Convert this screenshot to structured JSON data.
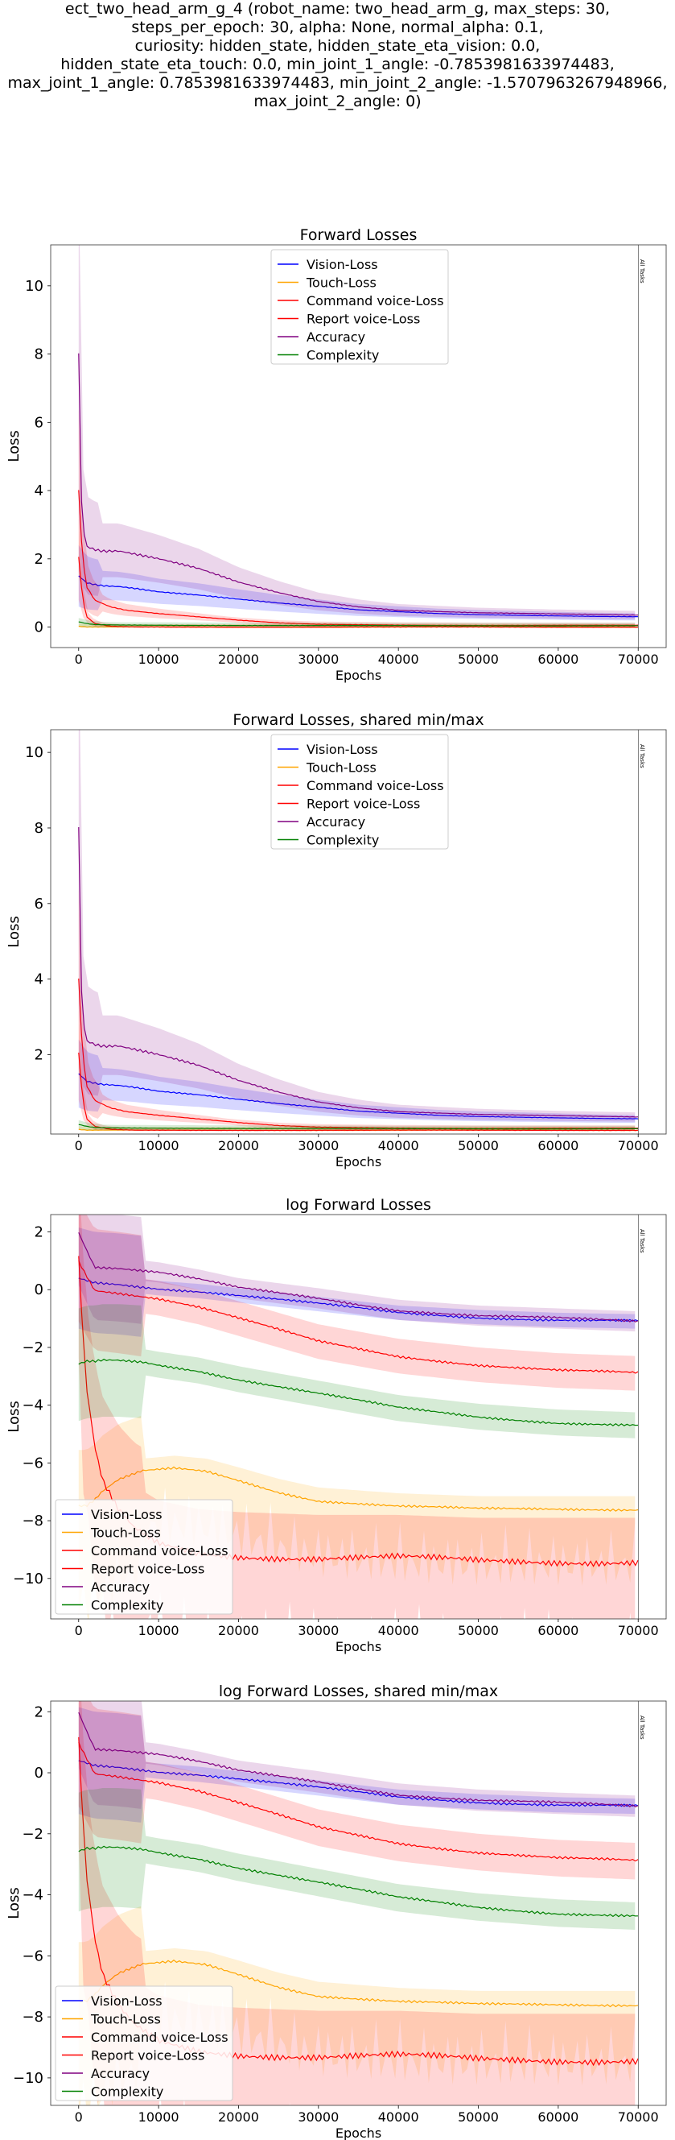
{
  "figure": {
    "suptitle_lines": [
      "ect_two_head_arm_g_4 (robot_name: two_head_arm_g, max_steps: 30,",
      "steps_per_epoch: 30, alpha: None, normal_alpha: 0.1,",
      "curiosity: hidden_state, hidden_state_eta_vision: 0.0,",
      "hidden_state_eta_touch: 0.0, min_joint_1_angle: -0.7853981633974483,",
      "max_joint_1_angle: 0.7853981633974483, min_joint_2_angle: -1.5707963267948966,",
      "max_joint_2_angle: 0)"
    ],
    "vline_label": "All Tasks"
  },
  "colors": {
    "Vision-Loss": "#0000ff",
    "Touch-Loss": "#ffa500",
    "Command voice-Loss": "#ff0000",
    "Report voice-Loss": "#ff0000",
    "Accuracy": "#800080",
    "Complexity": "#008000"
  },
  "chart_data": [
    {
      "type": "line",
      "title": "Forward Losses",
      "xlabel": "Epochs",
      "ylabel": "Loss",
      "xlim": [
        -3500,
        73500
      ],
      "ylim": [
        -0.6,
        11.2
      ],
      "xticks": [
        0,
        10000,
        20000,
        30000,
        40000,
        50000,
        60000,
        70000
      ],
      "yticks": [
        0,
        2,
        4,
        6,
        8,
        10
      ],
      "vline_x": 70000,
      "legend": "upper center",
      "series": [
        {
          "name": "Vision-Loss",
          "x": [
            0,
            500,
            1000,
            2000,
            3000,
            5000,
            7000,
            10000,
            15000,
            20000,
            25000,
            30000,
            35000,
            40000,
            45000,
            50000,
            55000,
            60000,
            65000,
            70000
          ],
          "y": [
            1.5,
            1.4,
            1.3,
            1.25,
            1.22,
            1.2,
            1.15,
            1.05,
            0.95,
            0.82,
            0.7,
            0.6,
            0.5,
            0.45,
            0.4,
            0.37,
            0.35,
            0.33,
            0.31,
            0.3
          ]
        },
        {
          "name": "Touch-Loss",
          "x": [
            0,
            1000,
            5000,
            20000,
            40000,
            70000
          ],
          "y": [
            0.02,
            0.0,
            0.0,
            0.0,
            0.0,
            0.0
          ]
        },
        {
          "name": "Command voice-Loss",
          "x": [
            0,
            500,
            1000,
            2000,
            4000,
            6000,
            10000,
            15000,
            20000,
            25000,
            30000,
            40000,
            50000,
            60000,
            70000
          ],
          "y": [
            4.0,
            2.0,
            1.2,
            0.8,
            0.6,
            0.5,
            0.4,
            0.3,
            0.2,
            0.12,
            0.08,
            0.06,
            0.05,
            0.05,
            0.05
          ]
        },
        {
          "name": "Report voice-Loss",
          "x": [
            0,
            500,
            1000,
            2000,
            4000,
            7000,
            10000,
            15000,
            20000,
            25000,
            30000,
            40000,
            50000,
            60000,
            70000
          ],
          "y": [
            2.0,
            0.8,
            0.3,
            0.1,
            0.02,
            0.0,
            0.0,
            0.0,
            0.0,
            0.0,
            0.0,
            0.0,
            0.0,
            0.0,
            0.0
          ]
        },
        {
          "name": "Accuracy",
          "x": [
            0,
            200,
            500,
            1000,
            2000,
            3000,
            5000,
            7000,
            10000,
            15000,
            20000,
            25000,
            30000,
            35000,
            40000,
            50000,
            60000,
            70000
          ],
          "y": [
            8.1,
            4.5,
            3.0,
            2.4,
            2.3,
            2.25,
            2.25,
            2.15,
            2.0,
            1.7,
            1.3,
            1.0,
            0.75,
            0.6,
            0.5,
            0.42,
            0.38,
            0.35
          ]
        },
        {
          "name": "Complexity",
          "x": [
            0,
            1000,
            2000,
            5000,
            20000,
            40000,
            70000
          ],
          "y": [
            0.15,
            0.1,
            0.07,
            0.06,
            0.05,
            0.04,
            0.04
          ]
        }
      ]
    },
    {
      "type": "line",
      "title": "Forward Losses, shared min/max",
      "xlabel": "Epochs",
      "ylabel": "Loss",
      "xlim": [
        -3500,
        73500
      ],
      "ylim": [
        -0.1,
        10.6
      ],
      "xticks": [
        0,
        10000,
        20000,
        30000,
        40000,
        50000,
        60000,
        70000
      ],
      "yticks": [
        2,
        4,
        6,
        8,
        10
      ],
      "vline_x": 70000,
      "legend": "upper center",
      "series": [
        {
          "name": "Vision-Loss",
          "x": [
            0,
            500,
            1000,
            2000,
            3000,
            5000,
            7000,
            10000,
            15000,
            20000,
            25000,
            30000,
            35000,
            40000,
            45000,
            50000,
            55000,
            60000,
            65000,
            70000
          ],
          "y": [
            1.5,
            1.4,
            1.3,
            1.25,
            1.22,
            1.2,
            1.15,
            1.05,
            0.95,
            0.82,
            0.7,
            0.6,
            0.5,
            0.45,
            0.4,
            0.37,
            0.35,
            0.33,
            0.31,
            0.3
          ]
        },
        {
          "name": "Touch-Loss",
          "x": [
            0,
            1000,
            5000,
            20000,
            40000,
            70000
          ],
          "y": [
            0.02,
            0.0,
            0.0,
            0.0,
            0.0,
            0.0
          ]
        },
        {
          "name": "Command voice-Loss",
          "x": [
            0,
            500,
            1000,
            2000,
            4000,
            6000,
            10000,
            15000,
            20000,
            25000,
            30000,
            40000,
            50000,
            60000,
            70000
          ],
          "y": [
            4.0,
            2.0,
            1.2,
            0.8,
            0.6,
            0.5,
            0.4,
            0.3,
            0.2,
            0.12,
            0.08,
            0.06,
            0.05,
            0.05,
            0.05
          ]
        },
        {
          "name": "Report voice-Loss",
          "x": [
            0,
            500,
            1000,
            2000,
            4000,
            7000,
            10000,
            15000,
            20000,
            25000,
            30000,
            40000,
            50000,
            60000,
            70000
          ],
          "y": [
            2.0,
            0.8,
            0.3,
            0.1,
            0.02,
            0.0,
            0.0,
            0.0,
            0.0,
            0.0,
            0.0,
            0.0,
            0.0,
            0.0,
            0.0
          ]
        },
        {
          "name": "Accuracy",
          "x": [
            0,
            200,
            500,
            1000,
            2000,
            3000,
            5000,
            7000,
            10000,
            15000,
            20000,
            25000,
            30000,
            35000,
            40000,
            50000,
            60000,
            70000
          ],
          "y": [
            8.1,
            4.5,
            3.0,
            2.4,
            2.3,
            2.25,
            2.25,
            2.15,
            2.0,
            1.7,
            1.3,
            1.0,
            0.75,
            0.6,
            0.5,
            0.42,
            0.38,
            0.35
          ]
        },
        {
          "name": "Complexity",
          "x": [
            0,
            1000,
            2000,
            5000,
            20000,
            40000,
            70000
          ],
          "y": [
            0.15,
            0.1,
            0.07,
            0.06,
            0.05,
            0.04,
            0.04
          ]
        }
      ]
    },
    {
      "type": "line",
      "title": "log Forward Losses",
      "xlabel": "Epochs",
      "ylabel": "Loss",
      "xlim": [
        -3500,
        73500
      ],
      "ylim": [
        -11.4,
        2.6
      ],
      "xticks": [
        0,
        10000,
        20000,
        30000,
        40000,
        50000,
        60000,
        70000
      ],
      "yticks": [
        -10,
        -8,
        -6,
        -4,
        -2,
        0,
        2
      ],
      "vline_x": 70000,
      "legend": "lower left",
      "series": [
        {
          "name": "Vision-Loss",
          "x": [
            0,
            2000,
            5000,
            10000,
            15000,
            20000,
            30000,
            40000,
            50000,
            60000,
            70000
          ],
          "y": [
            0.4,
            0.25,
            0.2,
            0.05,
            -0.05,
            -0.2,
            -0.5,
            -0.8,
            -0.95,
            -1.05,
            -1.1
          ]
        },
        {
          "name": "Touch-Loss",
          "x": [
            0,
            1000,
            2000,
            3000,
            5000,
            8000,
            12000,
            16000,
            20000,
            25000,
            30000,
            40000,
            50000,
            60000,
            70000
          ],
          "y": [
            -7.5,
            -7.5,
            -7.3,
            -7.0,
            -6.6,
            -6.3,
            -6.2,
            -6.3,
            -6.6,
            -7.0,
            -7.3,
            -7.5,
            -7.6,
            -7.6,
            -7.6
          ]
        },
        {
          "name": "Command voice-Loss",
          "x": [
            0,
            2000,
            5000,
            10000,
            15000,
            20000,
            25000,
            30000,
            40000,
            50000,
            60000,
            70000
          ],
          "y": [
            1.0,
            0.0,
            -0.1,
            -0.3,
            -0.6,
            -1.0,
            -1.4,
            -1.8,
            -2.3,
            -2.6,
            -2.8,
            -2.9
          ]
        },
        {
          "name": "Report voice-Loss",
          "x": [
            0,
            500,
            1000,
            2000,
            3000,
            5000,
            7000,
            10000,
            15000,
            20000,
            30000,
            40000,
            50000,
            60000,
            70000
          ],
          "y": [
            1.0,
            -1.5,
            -3.5,
            -5.5,
            -6.7,
            -7.7,
            -8.3,
            -8.8,
            -9.1,
            -9.2,
            -9.3,
            -9.3,
            -9.4,
            -9.4,
            -9.4
          ]
        },
        {
          "name": "Accuracy",
          "x": [
            0,
            2000,
            5000,
            10000,
            15000,
            20000,
            30000,
            40000,
            50000,
            60000,
            70000
          ],
          "y": [
            2.0,
            0.8,
            0.75,
            0.6,
            0.35,
            0.05,
            -0.3,
            -0.7,
            -0.9,
            -1.0,
            -1.1
          ]
        },
        {
          "name": "Complexity",
          "x": [
            0,
            1000,
            2000,
            3000,
            5000,
            8000,
            10000,
            15000,
            20000,
            30000,
            40000,
            50000,
            60000,
            70000
          ],
          "y": [
            -2.6,
            -2.5,
            -2.5,
            -2.45,
            -2.45,
            -2.5,
            -2.6,
            -2.8,
            -3.1,
            -3.6,
            -4.1,
            -4.4,
            -4.6,
            -4.7
          ]
        }
      ]
    },
    {
      "type": "line",
      "title": "log Forward Losses, shared min/max",
      "xlabel": "Epochs",
      "ylabel": "Loss",
      "xlim": [
        -3500,
        73500
      ],
      "ylim": [
        -10.9,
        2.35
      ],
      "xticks": [
        0,
        10000,
        20000,
        30000,
        40000,
        50000,
        60000,
        70000
      ],
      "yticks": [
        -10,
        -8,
        -6,
        -4,
        -2,
        0,
        2
      ],
      "vline_x": 70000,
      "legend": "lower left",
      "series": [
        {
          "name": "Vision-Loss",
          "x": [
            0,
            2000,
            5000,
            10000,
            15000,
            20000,
            30000,
            40000,
            50000,
            60000,
            70000
          ],
          "y": [
            0.4,
            0.25,
            0.2,
            0.05,
            -0.05,
            -0.2,
            -0.5,
            -0.8,
            -0.95,
            -1.05,
            -1.1
          ]
        },
        {
          "name": "Touch-Loss",
          "x": [
            0,
            1000,
            2000,
            3000,
            5000,
            8000,
            12000,
            16000,
            20000,
            25000,
            30000,
            40000,
            50000,
            60000,
            70000
          ],
          "y": [
            -7.5,
            -7.5,
            -7.3,
            -7.0,
            -6.6,
            -6.3,
            -6.2,
            -6.3,
            -6.6,
            -7.0,
            -7.3,
            -7.5,
            -7.6,
            -7.6,
            -7.6
          ]
        },
        {
          "name": "Command voice-Loss",
          "x": [
            0,
            2000,
            5000,
            10000,
            15000,
            20000,
            25000,
            30000,
            40000,
            50000,
            60000,
            70000
          ],
          "y": [
            1.0,
            0.0,
            -0.1,
            -0.3,
            -0.6,
            -1.0,
            -1.4,
            -1.8,
            -2.3,
            -2.6,
            -2.8,
            -2.9
          ]
        },
        {
          "name": "Report voice-Loss",
          "x": [
            0,
            500,
            1000,
            2000,
            3000,
            5000,
            7000,
            10000,
            15000,
            20000,
            30000,
            40000,
            50000,
            60000,
            70000
          ],
          "y": [
            1.0,
            -1.5,
            -3.5,
            -5.5,
            -6.7,
            -7.7,
            -8.3,
            -8.8,
            -9.1,
            -9.2,
            -9.3,
            -9.3,
            -9.4,
            -9.4,
            -9.4
          ]
        },
        {
          "name": "Accuracy",
          "x": [
            0,
            2000,
            5000,
            10000,
            15000,
            20000,
            30000,
            40000,
            50000,
            60000,
            70000
          ],
          "y": [
            2.0,
            0.8,
            0.75,
            0.6,
            0.35,
            0.05,
            -0.3,
            -0.7,
            -0.9,
            -1.0,
            -1.1
          ]
        },
        {
          "name": "Complexity",
          "x": [
            0,
            1000,
            2000,
            3000,
            5000,
            8000,
            10000,
            15000,
            20000,
            30000,
            40000,
            50000,
            60000,
            70000
          ],
          "y": [
            -2.6,
            -2.5,
            -2.5,
            -2.45,
            -2.45,
            -2.5,
            -2.6,
            -2.8,
            -3.1,
            -3.6,
            -4.1,
            -4.4,
            -4.6,
            -4.7
          ]
        }
      ]
    }
  ]
}
